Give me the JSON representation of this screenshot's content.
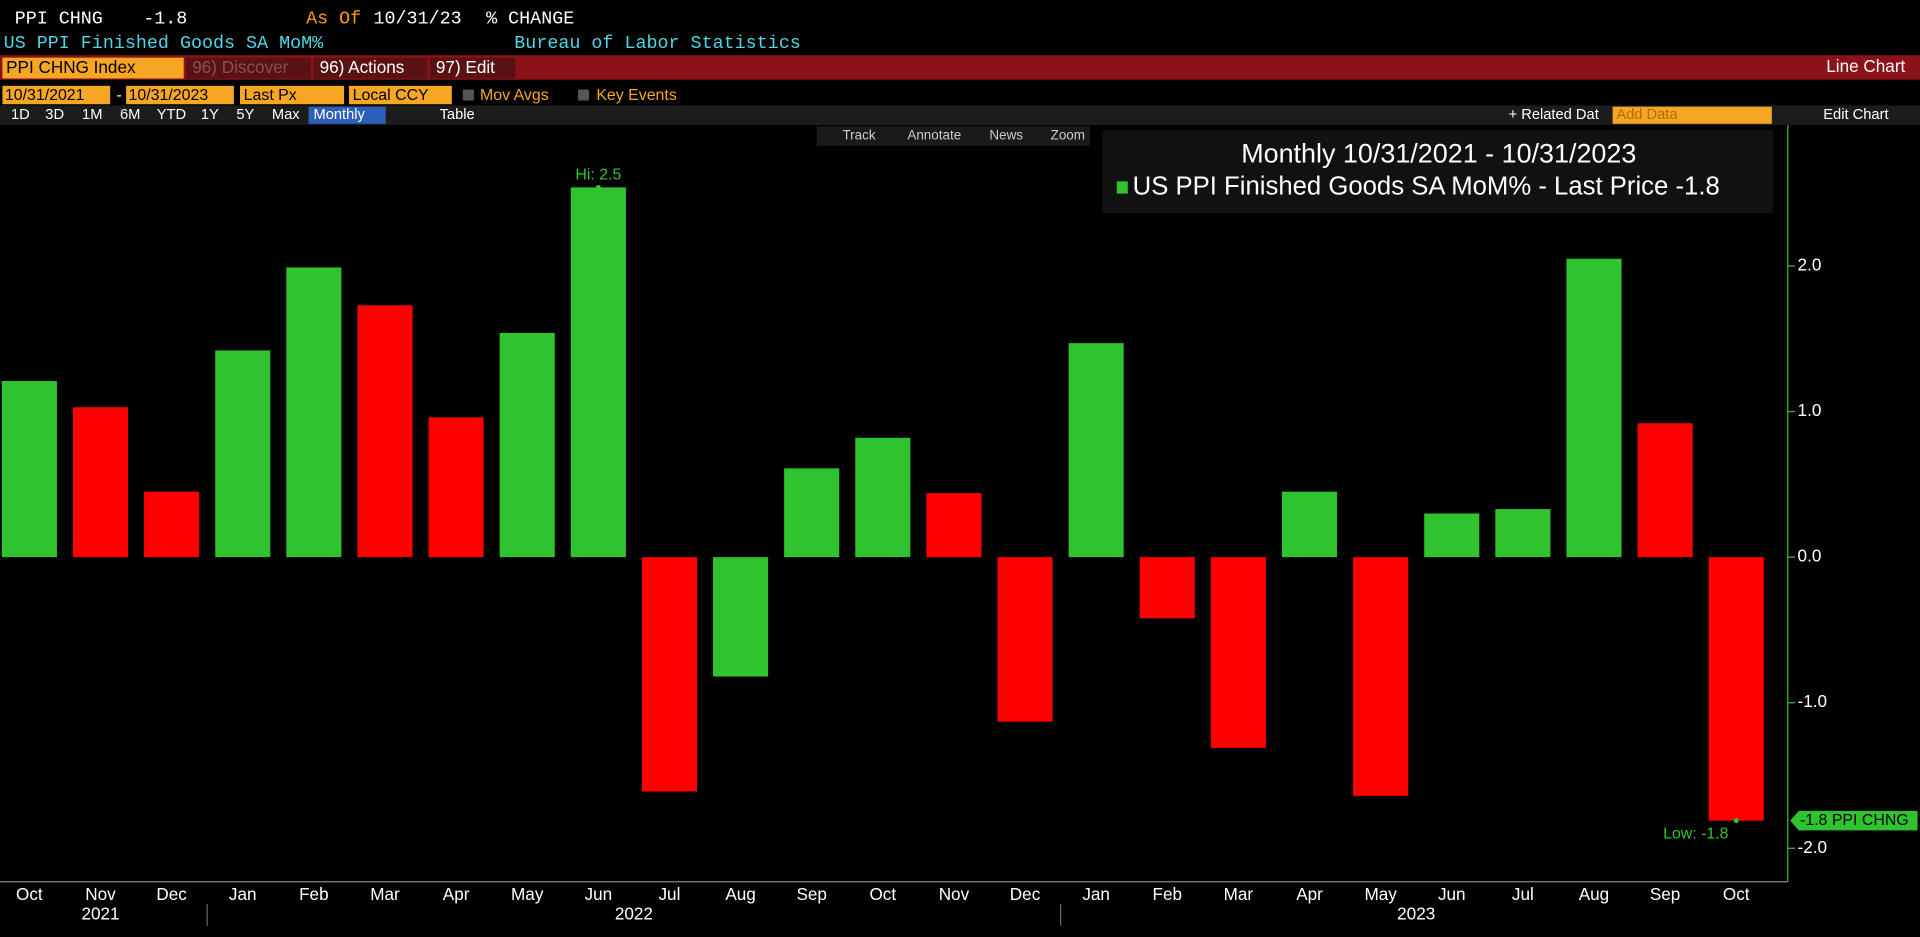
{
  "header": {
    "ticker": "PPI CHNG",
    "last": -1.8,
    "as_of_label": "As Of",
    "as_of": "10/31/23",
    "unit": "% CHANGE",
    "description": "US PPI Finished Goods SA MoM%",
    "source": "Bureau of Labor Statistics"
  },
  "toolbar": {
    "security": "PPI CHNG Index",
    "discover": "96) Discover",
    "actions": "96) Actions",
    "edit": "97) Edit",
    "view": "Line Chart"
  },
  "controls": {
    "start": "10/31/2021",
    "sep": "-",
    "end": "10/31/2023",
    "field": "Last Px",
    "currency": "Local CCY",
    "mov_avgs": "Mov Avgs",
    "key_events": "Key Events",
    "periods": [
      "1D",
      "3D",
      "1M",
      "6M",
      "YTD",
      "1Y",
      "5Y",
      "Max"
    ],
    "frequency": "Monthly",
    "table": "Table",
    "related": "+ Related Dat",
    "add_data": "Add Data",
    "edit_chart": "Edit Chart",
    "tools": [
      "Track",
      "Annotate",
      "News",
      "Zoom"
    ]
  },
  "chart_data": {
    "type": "bar",
    "legend_title": "Monthly 10/31/2021 - 10/31/2023",
    "legend": "US PPI Finished Goods SA MoM% - Last Price -1.8",
    "legend_color": "#2fc42f",
    "categories": [
      "Oct",
      "Nov",
      "Dec",
      "Jan",
      "Feb",
      "Mar",
      "Apr",
      "May",
      "Jun",
      "Jul",
      "Aug",
      "Sep",
      "Oct",
      "Nov",
      "Dec",
      "Jan",
      "Feb",
      "Mar",
      "Apr",
      "May",
      "Jun",
      "Jul",
      "Aug",
      "Sep",
      "Oct"
    ],
    "years": [
      "2021",
      "2022",
      "2023"
    ],
    "values": [
      1.21,
      1.03,
      0.45,
      1.42,
      1.99,
      1.73,
      0.96,
      1.54,
      2.54,
      -1.61,
      -0.82,
      0.61,
      0.82,
      0.44,
      -1.13,
      1.47,
      -0.42,
      -1.31,
      0.45,
      -1.64,
      0.3,
      0.33,
      2.05,
      0.92,
      -1.81
    ],
    "colors": [
      "#2fc42f",
      "#ff0000",
      "#ff0000",
      "#2fc42f",
      "#2fc42f",
      "#ff0000",
      "#ff0000",
      "#2fc42f",
      "#2fc42f",
      "#ff0000",
      "#2fc42f",
      "#2fc42f",
      "#2fc42f",
      "#ff0000",
      "#ff0000",
      "#2fc42f",
      "#ff0000",
      "#ff0000",
      "#2fc42f",
      "#ff0000",
      "#2fc42f",
      "#2fc42f",
      "#2fc42f",
      "#ff0000",
      "#ff0000"
    ],
    "ylim": [
      -2.23,
      2.96
    ],
    "yticks": [
      {
        "value": -2,
        "label": "-2.0"
      },
      {
        "value": -1,
        "label": "-1.0"
      },
      {
        "value": 0,
        "label": "0.0"
      },
      {
        "value": 1,
        "label": "1.0"
      },
      {
        "value": 2,
        "label": "2.0"
      }
    ],
    "annotations": {
      "hi": "Hi: 2.5",
      "low": "Low: -1.8",
      "last": "-1.8 PPI CHNG"
    }
  }
}
